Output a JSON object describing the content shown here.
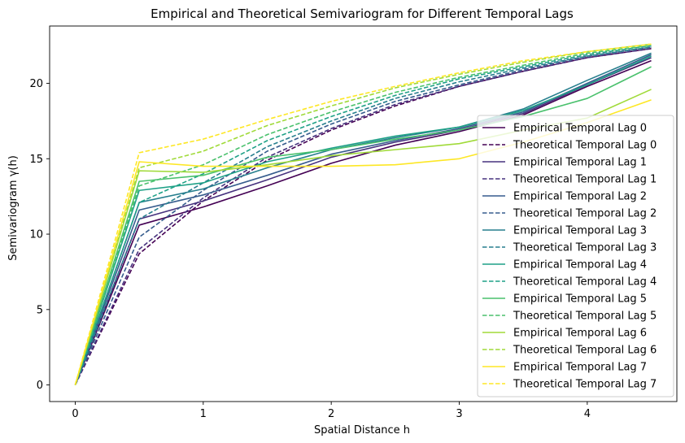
{
  "chart_data": {
    "type": "line",
    "title": "Empirical and Theoretical Semivariogram for Different Temporal Lags",
    "xlabel": "Spatial Distance h",
    "ylabel": "Semivariogram γ(h)",
    "xlim": [
      -0.2,
      4.7
    ],
    "ylim": [
      -1.1,
      23.8
    ],
    "xticks": [
      0,
      1,
      2,
      3,
      4
    ],
    "yticks": [
      0,
      5,
      10,
      15,
      20
    ],
    "grid": false,
    "legend_position": "lower-right",
    "x": [
      0,
      0.5,
      1,
      1.5,
      2,
      2.5,
      3,
      3.5,
      4,
      4.5
    ],
    "series": [
      {
        "name": "Empirical Temporal Lag 0",
        "style": "solid",
        "color": "#440154",
        "values": [
          0,
          10.6,
          11.8,
          13.2,
          14.7,
          15.9,
          16.8,
          17.9,
          19.8,
          21.5
        ]
      },
      {
        "name": "Theoretical Temporal Lag 0",
        "style": "dashed",
        "color": "#440154",
        "values": [
          0,
          8.7,
          12.2,
          14.9,
          16.9,
          18.5,
          19.8,
          20.8,
          21.7,
          22.3
        ]
      },
      {
        "name": "Empirical Temporal Lag 1",
        "style": "solid",
        "color": "#46327e",
        "values": [
          0,
          11.0,
          12.2,
          13.6,
          15.1,
          16.1,
          16.9,
          18.0,
          19.9,
          21.7
        ]
      },
      {
        "name": "Theoretical Temporal Lag 1",
        "style": "dashed",
        "color": "#46327e",
        "values": [
          0,
          9.0,
          12.4,
          15.1,
          17.0,
          18.6,
          19.8,
          20.8,
          21.7,
          22.3
        ]
      },
      {
        "name": "Empirical Temporal Lag 2",
        "style": "solid",
        "color": "#365c8d",
        "values": [
          0,
          11.6,
          12.6,
          13.9,
          15.3,
          16.2,
          17.0,
          18.1,
          20.0,
          21.9
        ]
      },
      {
        "name": "Theoretical Temporal Lag 2",
        "style": "dashed",
        "color": "#365c8d",
        "values": [
          0,
          9.8,
          12.9,
          15.5,
          17.3,
          18.8,
          19.9,
          20.9,
          21.8,
          22.4
        ]
      },
      {
        "name": "Empirical Temporal Lag 3",
        "style": "solid",
        "color": "#277f8e",
        "values": [
          0,
          12.1,
          13.0,
          14.4,
          15.6,
          16.4,
          17.1,
          18.3,
          20.2,
          22.0
        ]
      },
      {
        "name": "Theoretical Temporal Lag 3",
        "style": "dashed",
        "color": "#277f8e",
        "values": [
          0,
          11.0,
          13.4,
          15.8,
          17.5,
          19.0,
          20.1,
          21.0,
          21.8,
          22.4
        ]
      },
      {
        "name": "Empirical Temporal Lag 4",
        "style": "solid",
        "color": "#1fa187",
        "values": [
          0,
          12.9,
          13.4,
          14.8,
          15.7,
          16.5,
          17.1,
          18.2,
          19.9,
          21.8
        ]
      },
      {
        "name": "Theoretical Temporal Lag 4",
        "style": "dashed",
        "color": "#1fa187",
        "values": [
          0,
          12.1,
          14.0,
          16.2,
          17.8,
          19.2,
          20.3,
          21.1,
          21.9,
          22.5
        ]
      },
      {
        "name": "Empirical Temporal Lag 5",
        "style": "solid",
        "color": "#4ac16d",
        "values": [
          0,
          13.5,
          13.9,
          15.1,
          15.6,
          16.3,
          16.9,
          17.8,
          19.0,
          21.1
        ]
      },
      {
        "name": "Theoretical Temporal Lag 5",
        "style": "dashed",
        "color": "#4ac16d",
        "values": [
          0,
          13.2,
          14.6,
          16.6,
          18.1,
          19.4,
          20.4,
          21.2,
          22.0,
          22.5
        ]
      },
      {
        "name": "Empirical Temporal Lag 6",
        "style": "solid",
        "color": "#a0da39",
        "values": [
          0,
          14.2,
          14.1,
          14.6,
          15.2,
          15.6,
          16.0,
          16.9,
          17.7,
          19.6
        ]
      },
      {
        "name": "Theoretical Temporal Lag 6",
        "style": "dashed",
        "color": "#a0da39",
        "values": [
          0,
          14.4,
          15.5,
          17.2,
          18.5,
          19.7,
          20.6,
          21.4,
          22.1,
          22.6
        ]
      },
      {
        "name": "Empirical Temporal Lag 7",
        "style": "solid",
        "color": "#fde725",
        "values": [
          0,
          14.8,
          14.5,
          14.5,
          14.5,
          14.6,
          15.0,
          16.1,
          17.4,
          18.9
        ]
      },
      {
        "name": "Theoretical Temporal Lag 7",
        "style": "dashed",
        "color": "#fde725",
        "values": [
          0,
          15.4,
          16.3,
          17.6,
          18.8,
          19.8,
          20.7,
          21.5,
          22.1,
          22.6
        ]
      }
    ]
  }
}
